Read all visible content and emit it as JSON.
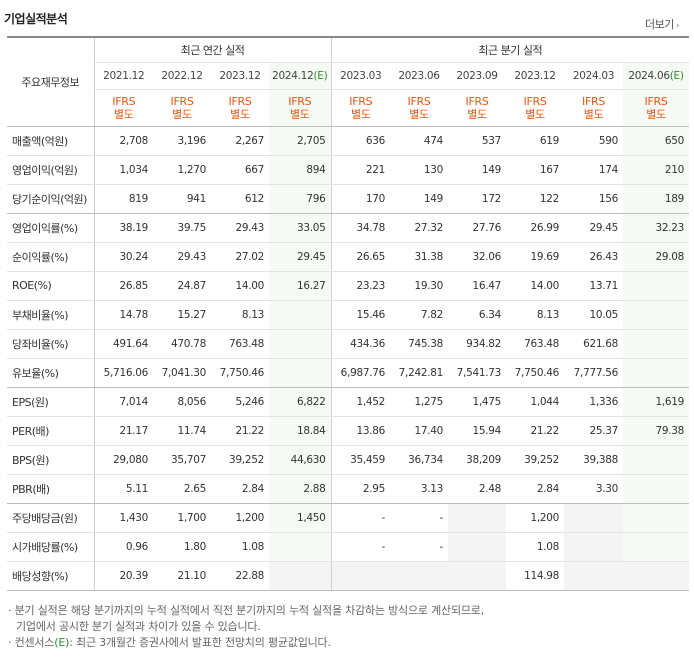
{
  "header": {
    "title": "기업실적분석",
    "more_label": "더보기",
    "more_icon": "chevron-right-icon"
  },
  "table": {
    "row_header_label": "주요재무정보",
    "group_annual": "최근 연간 실적",
    "group_quarter": "최근 분기 실적",
    "periods": [
      {
        "date": "2021.12",
        "est": ""
      },
      {
        "date": "2022.12",
        "est": ""
      },
      {
        "date": "2023.12",
        "est": ""
      },
      {
        "date": "2024.12",
        "est": "(E)"
      },
      {
        "date": "2023.03",
        "est": ""
      },
      {
        "date": "2023.06",
        "est": ""
      },
      {
        "date": "2023.09",
        "est": ""
      },
      {
        "date": "2023.12",
        "est": ""
      },
      {
        "date": "2024.03",
        "est": ""
      },
      {
        "date": "2024.06",
        "est": "(E)"
      }
    ],
    "ifrs_line1": "IFRS",
    "ifrs_line2": "별도",
    "rows": [
      {
        "label": "매출액(억원)",
        "values": [
          "2,708",
          "3,196",
          "2,267",
          "2,705",
          "636",
          "474",
          "537",
          "619",
          "590",
          "650"
        ]
      },
      {
        "label": "영업이익(억원)",
        "values": [
          "1,034",
          "1,270",
          "667",
          "894",
          "221",
          "130",
          "149",
          "167",
          "174",
          "210"
        ]
      },
      {
        "label": "당기순이익(억원)",
        "values": [
          "819",
          "941",
          "612",
          "796",
          "170",
          "149",
          "172",
          "122",
          "156",
          "189"
        ]
      },
      {
        "label": "영업이익률(%)",
        "values": [
          "38.19",
          "39.75",
          "29.43",
          "33.05",
          "34.78",
          "27.32",
          "27.76",
          "26.99",
          "29.45",
          "32.23"
        ]
      },
      {
        "label": "순이익률(%)",
        "values": [
          "30.24",
          "29.43",
          "27.02",
          "29.45",
          "26.65",
          "31.38",
          "32.06",
          "19.69",
          "26.43",
          "29.08"
        ]
      },
      {
        "label": "ROE(%)",
        "values": [
          "26.85",
          "24.87",
          "14.00",
          "16.27",
          "23.23",
          "19.30",
          "16.47",
          "14.00",
          "13.71",
          ""
        ]
      },
      {
        "label": "부채비율(%)",
        "values": [
          "14.78",
          "15.27",
          "8.13",
          "",
          "15.46",
          "7.82",
          "6.34",
          "8.13",
          "10.05",
          ""
        ]
      },
      {
        "label": "당좌비율(%)",
        "values": [
          "491.64",
          "470.78",
          "763.48",
          "",
          "434.36",
          "745.38",
          "934.82",
          "763.48",
          "621.68",
          ""
        ]
      },
      {
        "label": "유보율(%)",
        "values": [
          "5,716.06",
          "7,041.30",
          "7,750.46",
          "",
          "6,987.76",
          "7,242.81",
          "7,541.73",
          "7,750.46",
          "7,777.56",
          ""
        ]
      },
      {
        "label": "EPS(원)",
        "values": [
          "7,014",
          "8,056",
          "5,246",
          "6,822",
          "1,452",
          "1,275",
          "1,475",
          "1,044",
          "1,336",
          "1,619"
        ]
      },
      {
        "label": "PER(배)",
        "values": [
          "21.17",
          "11.74",
          "21.22",
          "18.84",
          "13.86",
          "17.40",
          "15.94",
          "21.22",
          "25.37",
          "79.38"
        ]
      },
      {
        "label": "BPS(원)",
        "values": [
          "29,080",
          "35,707",
          "39,252",
          "44,630",
          "35,459",
          "36,734",
          "38,209",
          "39,252",
          "39,388",
          ""
        ]
      },
      {
        "label": "PBR(배)",
        "values": [
          "5.11",
          "2.65",
          "2.84",
          "2.88",
          "2.95",
          "3.13",
          "2.48",
          "2.84",
          "3.30",
          ""
        ]
      },
      {
        "label": "주당배당금(원)",
        "values": [
          "1,430",
          "1,700",
          "1,200",
          "1,450",
          "-",
          "-",
          "",
          "1,200",
          "",
          ""
        ]
      },
      {
        "label": "시가배당률(%)",
        "values": [
          "0.96",
          "1.80",
          "1.08",
          "",
          "-",
          "-",
          "",
          "1.08",
          "",
          ""
        ]
      },
      {
        "label": "배당성향(%)",
        "values": [
          "20.39",
          "21.10",
          "22.88",
          "",
          "",
          "",
          "",
          "114.98",
          "",
          ""
        ]
      }
    ]
  },
  "notes": {
    "line1": "· 분기 실적은 해당 분기까지의 누적 실적에서 직전 분기까지의 누적 실적을 차감하는 방식으로 계산되므로,",
    "line2": "기업에서 공시한 분기 실적과 차이가 있을 수 있습니다.",
    "line3_prefix": "· 컨센서스",
    "line3_mark": "(E)",
    "line3_suffix": ": 최근 3개월간 증권사에서 발표한 전망치의 평균값입니다."
  },
  "colors": {
    "accent_orange": "#e35710",
    "estimate_green": "#2a8e2a",
    "estimate_bg": "#f5faf5"
  }
}
